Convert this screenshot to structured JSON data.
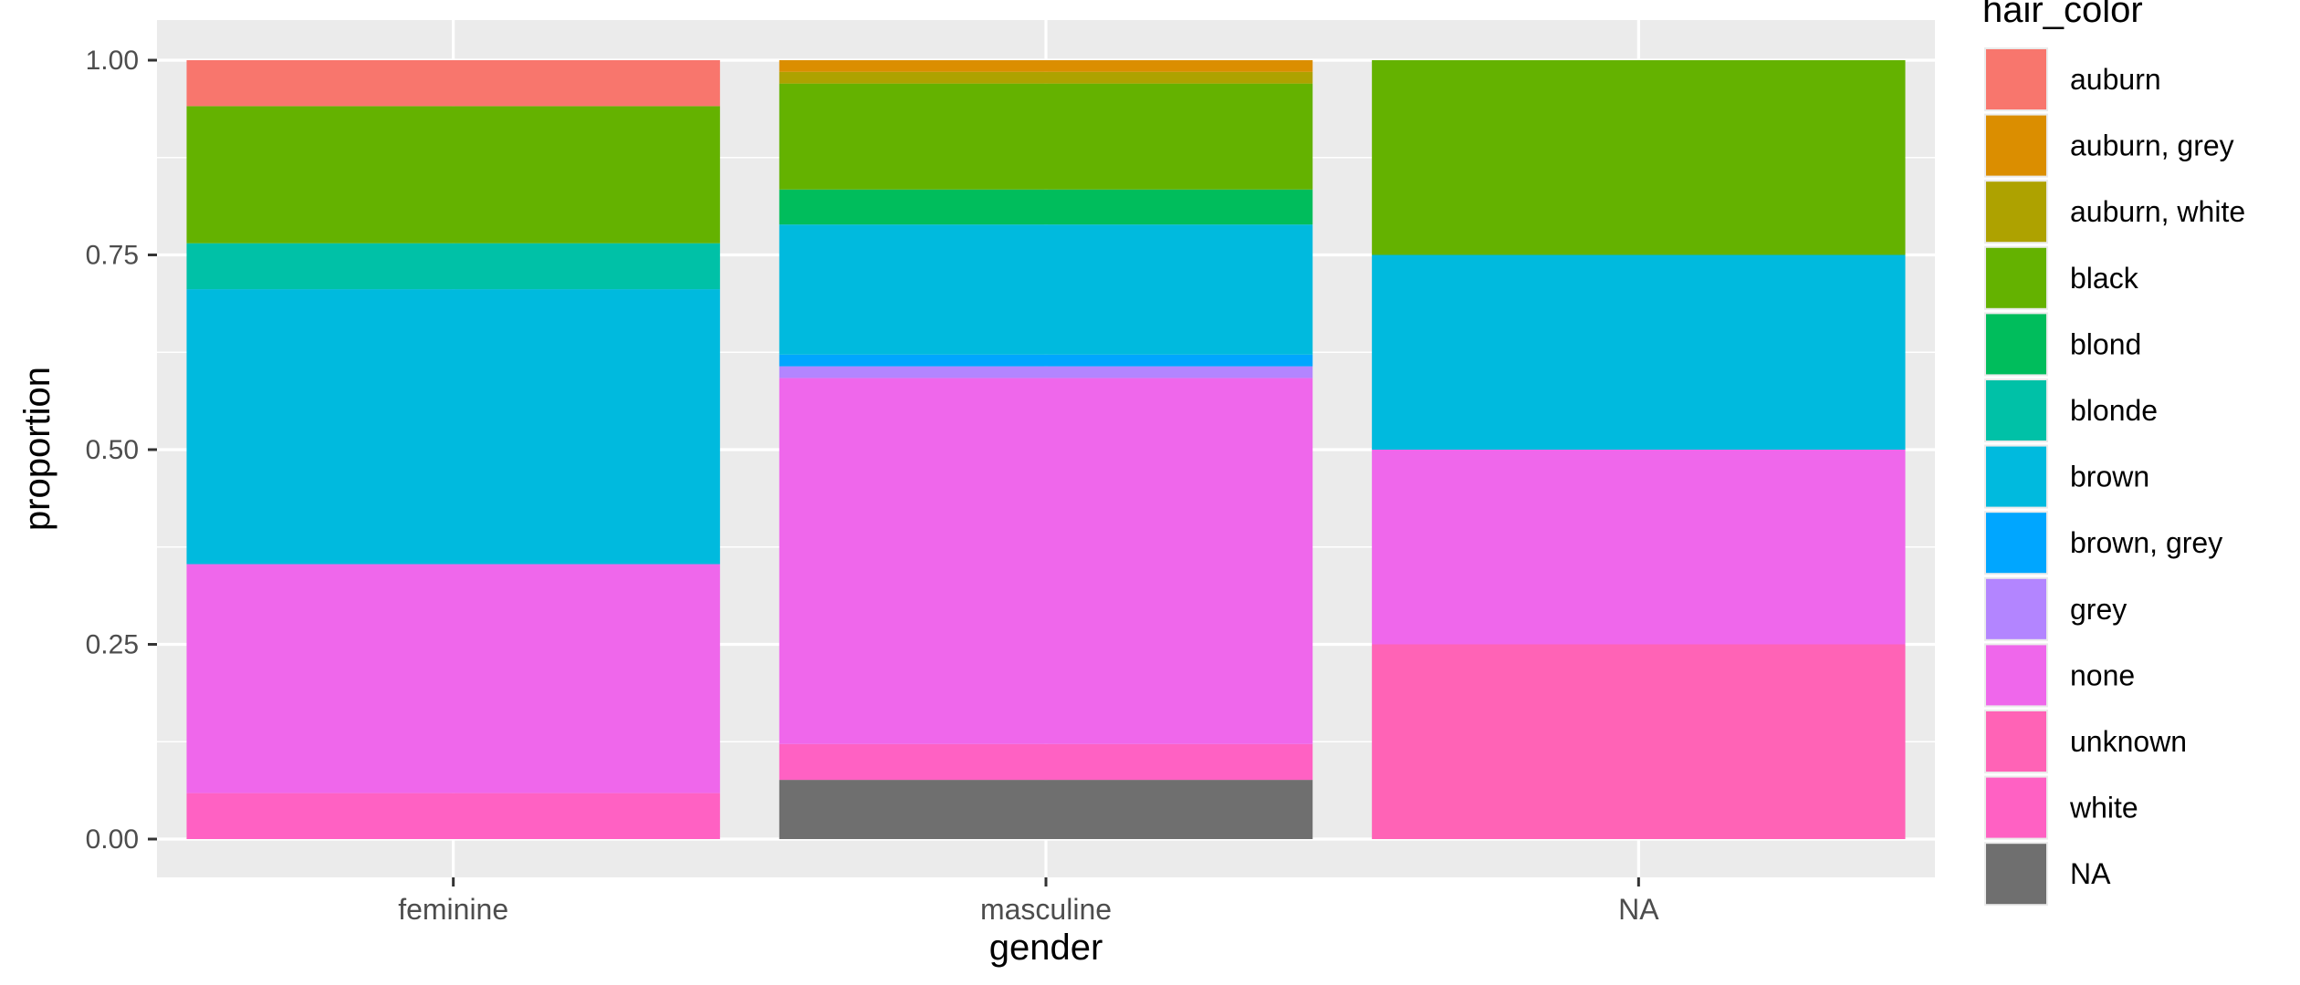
{
  "chart_data": {
    "type": "bar",
    "stacked": true,
    "xlabel": "gender",
    "ylabel": "proportion",
    "ylim": [
      0,
      1
    ],
    "yticks": [
      "0.00",
      "0.25",
      "0.50",
      "0.75",
      "1.00"
    ],
    "categories": [
      "feminine",
      "masculine",
      "NA"
    ],
    "legend_title": "hair_color",
    "legend_position": "right",
    "grid": true,
    "series": [
      {
        "name": "auburn",
        "color": "#F8766D",
        "values": [
          0.059,
          0.0,
          0.0
        ]
      },
      {
        "name": "auburn, grey",
        "color": "#DB8E00",
        "values": [
          0.0,
          0.015,
          0.0
        ]
      },
      {
        "name": "auburn, white",
        "color": "#AEA200",
        "values": [
          0.0,
          0.015,
          0.0
        ]
      },
      {
        "name": "black",
        "color": "#64B200",
        "values": [
          0.176,
          0.136,
          0.25
        ]
      },
      {
        "name": "blond",
        "color": "#00BD5C",
        "values": [
          0.0,
          0.045,
          0.0
        ]
      },
      {
        "name": "blonde",
        "color": "#00C1A7",
        "values": [
          0.059,
          0.0,
          0.0
        ]
      },
      {
        "name": "brown",
        "color": "#00BADE",
        "values": [
          0.353,
          0.167,
          0.25
        ]
      },
      {
        "name": "brown, grey",
        "color": "#00A6FF",
        "values": [
          0.0,
          0.015,
          0.0
        ]
      },
      {
        "name": "grey",
        "color": "#B385FF",
        "values": [
          0.0,
          0.015,
          0.0
        ]
      },
      {
        "name": "none",
        "color": "#EF67EB",
        "values": [
          0.294,
          0.47,
          0.25
        ]
      },
      {
        "name": "unknown",
        "color": "#FF63B6",
        "values": [
          0.0,
          0.0,
          0.25
        ]
      },
      {
        "name": "white",
        "color": "#FF61C3",
        "values": [
          0.059,
          0.046,
          0.0
        ]
      },
      {
        "name": "NA",
        "color": "#6F6F6F",
        "values": [
          0.0,
          0.076,
          0.0
        ]
      }
    ]
  },
  "colors": {
    "panel_bg": "#EBEBEB",
    "grid": "#FFFFFF",
    "text": "#4D4D4D",
    "title_text": "#000000"
  }
}
